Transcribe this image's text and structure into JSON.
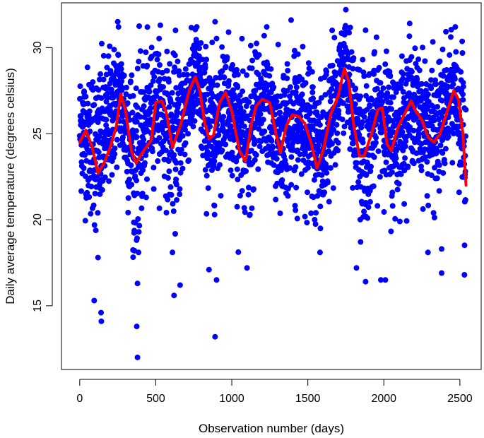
{
  "chart_data": {
    "type": "scatter",
    "xlabel": "Observation number (days)",
    "ylabel": "Daily average temperature (degrees celsius)",
    "xlim": [
      -120,
      2640
    ],
    "ylim": [
      11.3,
      32.6
    ],
    "xticks": [
      0,
      500,
      1000,
      1500,
      2000,
      2500
    ],
    "yticks": [
      15,
      20,
      25,
      30
    ],
    "grid": false,
    "legend": "none",
    "n_points": 2540,
    "colors": {
      "points": "#0000ff",
      "smooth": "#ff0000",
      "axes": "#000000"
    },
    "scatter_envelope": [
      {
        "x": 0,
        "mean": 25.4,
        "spread": 1.7
      },
      {
        "x": 120,
        "mean": 24.0,
        "spread": 2.4
      },
      {
        "x": 260,
        "mean": 27.3,
        "spread": 1.6
      },
      {
        "x": 360,
        "mean": 23.6,
        "spread": 2.6
      },
      {
        "x": 500,
        "mean": 27.0,
        "spread": 1.6
      },
      {
        "x": 620,
        "mean": 24.5,
        "spread": 2.2
      },
      {
        "x": 760,
        "mean": 28.2,
        "spread": 1.5
      },
      {
        "x": 860,
        "mean": 24.8,
        "spread": 2.2
      },
      {
        "x": 960,
        "mean": 27.3,
        "spread": 1.6
      },
      {
        "x": 1100,
        "mean": 24.0,
        "spread": 2.3
      },
      {
        "x": 1200,
        "mean": 27.0,
        "spread": 1.5
      },
      {
        "x": 1320,
        "mean": 24.5,
        "spread": 2.0
      },
      {
        "x": 1450,
        "mean": 26.2,
        "spread": 1.7
      },
      {
        "x": 1570,
        "mean": 23.5,
        "spread": 2.4
      },
      {
        "x": 1740,
        "mean": 28.6,
        "spread": 1.5
      },
      {
        "x": 1860,
        "mean": 24.0,
        "spread": 2.4
      },
      {
        "x": 1980,
        "mean": 26.5,
        "spread": 1.6
      },
      {
        "x": 2060,
        "mean": 24.5,
        "spread": 2.2
      },
      {
        "x": 2180,
        "mean": 26.8,
        "spread": 1.5
      },
      {
        "x": 2330,
        "mean": 24.8,
        "spread": 2.0
      },
      {
        "x": 2470,
        "mean": 27.4,
        "spread": 1.5
      },
      {
        "x": 2540,
        "mean": 23.5,
        "spread": 2.3
      }
    ],
    "outliers": [
      {
        "x": 380,
        "y": 12.0
      },
      {
        "x": 375,
        "y": 13.8
      },
      {
        "x": 890,
        "y": 13.2
      },
      {
        "x": 95,
        "y": 15.3
      },
      {
        "x": 140,
        "y": 14.6
      },
      {
        "x": 142,
        "y": 14.1
      },
      {
        "x": 380,
        "y": 16.3
      },
      {
        "x": 620,
        "y": 15.6
      },
      {
        "x": 660,
        "y": 16.2
      },
      {
        "x": 1980,
        "y": 16.5
      },
      {
        "x": 2010,
        "y": 16.5
      },
      {
        "x": 2380,
        "y": 16.9
      },
      {
        "x": 2530,
        "y": 16.8
      },
      {
        "x": 1880,
        "y": 16.4
      },
      {
        "x": 850,
        "y": 17.1
      },
      {
        "x": 1100,
        "y": 17.2
      },
      {
        "x": 1820,
        "y": 17.2
      },
      {
        "x": 900,
        "y": 16.5
      },
      {
        "x": 120,
        "y": 17.8
      },
      {
        "x": 360,
        "y": 18.2
      },
      {
        "x": 2290,
        "y": 18.1
      },
      {
        "x": 1580,
        "y": 18.1
      },
      {
        "x": 2380,
        "y": 18.3
      },
      {
        "x": 610,
        "y": 18.1
      }
    ],
    "highs": [
      {
        "x": 250,
        "y": 31.5
      },
      {
        "x": 255,
        "y": 31.2
      },
      {
        "x": 530,
        "y": 31.3
      },
      {
        "x": 890,
        "y": 31.5
      },
      {
        "x": 1390,
        "y": 31.6
      },
      {
        "x": 1750,
        "y": 32.2
      },
      {
        "x": 2170,
        "y": 31.4
      },
      {
        "x": 2470,
        "y": 31.2
      },
      {
        "x": 1660,
        "y": 31.0
      },
      {
        "x": 770,
        "y": 31.2
      },
      {
        "x": 1230,
        "y": 31.2
      },
      {
        "x": 630,
        "y": 31.0
      }
    ],
    "smooth_line": {
      "x": [
        0,
        40,
        80,
        120,
        160,
        200,
        240,
        270,
        300,
        340,
        370,
        420,
        470,
        500,
        540,
        570,
        610,
        660,
        720,
        760,
        790,
        820,
        850,
        880,
        920,
        960,
        1000,
        1050,
        1090,
        1130,
        1160,
        1200,
        1250,
        1290,
        1320,
        1360,
        1400,
        1440,
        1480,
        1520,
        1560,
        1600,
        1650,
        1700,
        1740,
        1770,
        1800,
        1840,
        1870,
        1920,
        1960,
        1990,
        2020,
        2050,
        2090,
        2140,
        2180,
        2210,
        2250,
        2290,
        2330,
        2370,
        2420,
        2460,
        2490,
        2520,
        2540
      ],
      "y": [
        24.5,
        25.2,
        24.3,
        22.7,
        23.3,
        24.2,
        25.4,
        27.3,
        26.4,
        24.0,
        23.3,
        24.0,
        24.6,
        26.8,
        26.9,
        26.2,
        24.2,
        25.4,
        27.5,
        28.3,
        27.5,
        25.7,
        24.7,
        24.9,
        26.8,
        27.4,
        26.3,
        24.0,
        23.4,
        25.6,
        26.6,
        27.0,
        26.8,
        25.0,
        23.9,
        25.5,
        26.1,
        26.0,
        25.6,
        24.5,
        23.0,
        24.0,
        26.1,
        27.2,
        28.8,
        28.0,
        25.6,
        23.7,
        23.7,
        25.0,
        26.4,
        26.5,
        24.4,
        24.0,
        25.3,
        26.2,
        26.9,
        26.3,
        25.8,
        24.8,
        24.5,
        25.0,
        26.4,
        27.5,
        27.0,
        25.0,
        22.0
      ]
    }
  }
}
